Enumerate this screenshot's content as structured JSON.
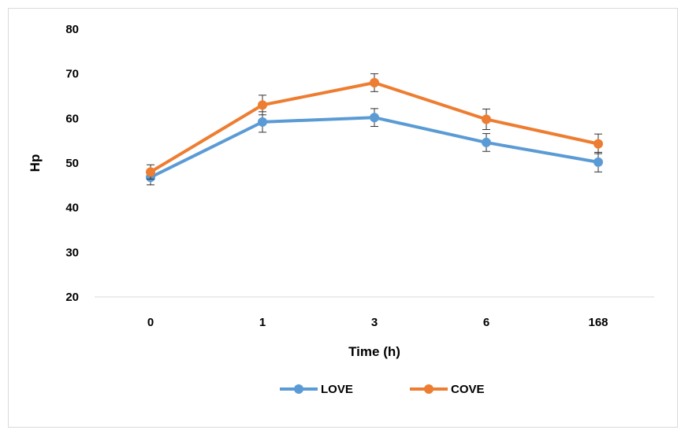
{
  "chart_data": {
    "type": "line",
    "title": "",
    "xlabel": "Time (h)",
    "ylabel": "Hp",
    "categories": [
      "0",
      "1",
      "3",
      "6",
      "168"
    ],
    "ylim": [
      20,
      80
    ],
    "yticks": [
      "20",
      "30",
      "40",
      "50",
      "60",
      "70",
      "80"
    ],
    "grid": false,
    "legend": "bottom",
    "error_bars": true,
    "series": [
      {
        "name": "LOVE",
        "color": "#5b9bd5",
        "values": [
          46.8,
          59.2,
          60.2,
          54.6,
          50.2
        ],
        "errors": [
          1.7,
          2.3,
          2.0,
          2.0,
          2.2
        ]
      },
      {
        "name": "COVE",
        "color": "#ed7d31",
        "values": [
          48.0,
          63.0,
          68.0,
          59.8,
          54.3
        ],
        "errors": [
          1.6,
          2.2,
          2.0,
          2.3,
          2.2
        ]
      }
    ]
  }
}
